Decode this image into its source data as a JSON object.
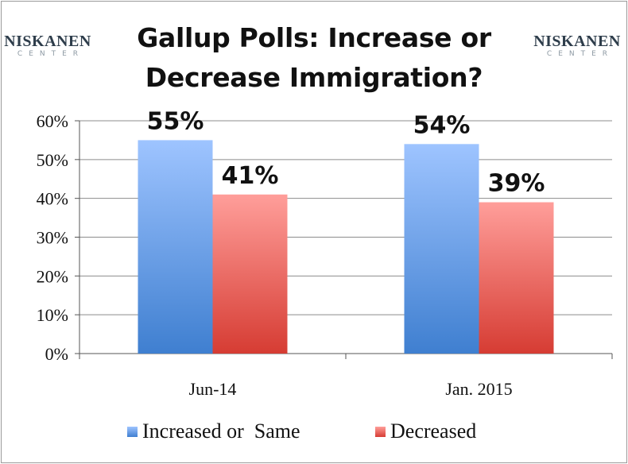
{
  "chart_data": {
    "type": "bar",
    "title_lines": [
      "Gallup Polls: Increase or",
      "Decrease Immigration?"
    ],
    "categories": [
      "Jun-14",
      "Jan. 2015"
    ],
    "series": [
      {
        "name": "Increased or  Same",
        "values": [
          55,
          54
        ],
        "labels": [
          "55%",
          "54%"
        ],
        "color_top": "#9ec4ff",
        "color_bottom": "#3f7fd0"
      },
      {
        "name": "Decreased",
        "values": [
          41,
          39
        ],
        "labels": [
          "41%",
          "39%"
        ],
        "color_top": "#ff9e9a",
        "color_bottom": "#d63c33"
      }
    ],
    "ylim": [
      0,
      60
    ],
    "yticks": [
      "0%",
      "10%",
      "20%",
      "30%",
      "40%",
      "50%",
      "60%"
    ],
    "xlabel": "",
    "ylabel": "",
    "grid": true,
    "legend": "bottom"
  },
  "logo": {
    "name": "NISKANEN",
    "sub": "CENTER"
  },
  "colors": {
    "grid": "#8c8c8c",
    "axis": "#555555"
  }
}
